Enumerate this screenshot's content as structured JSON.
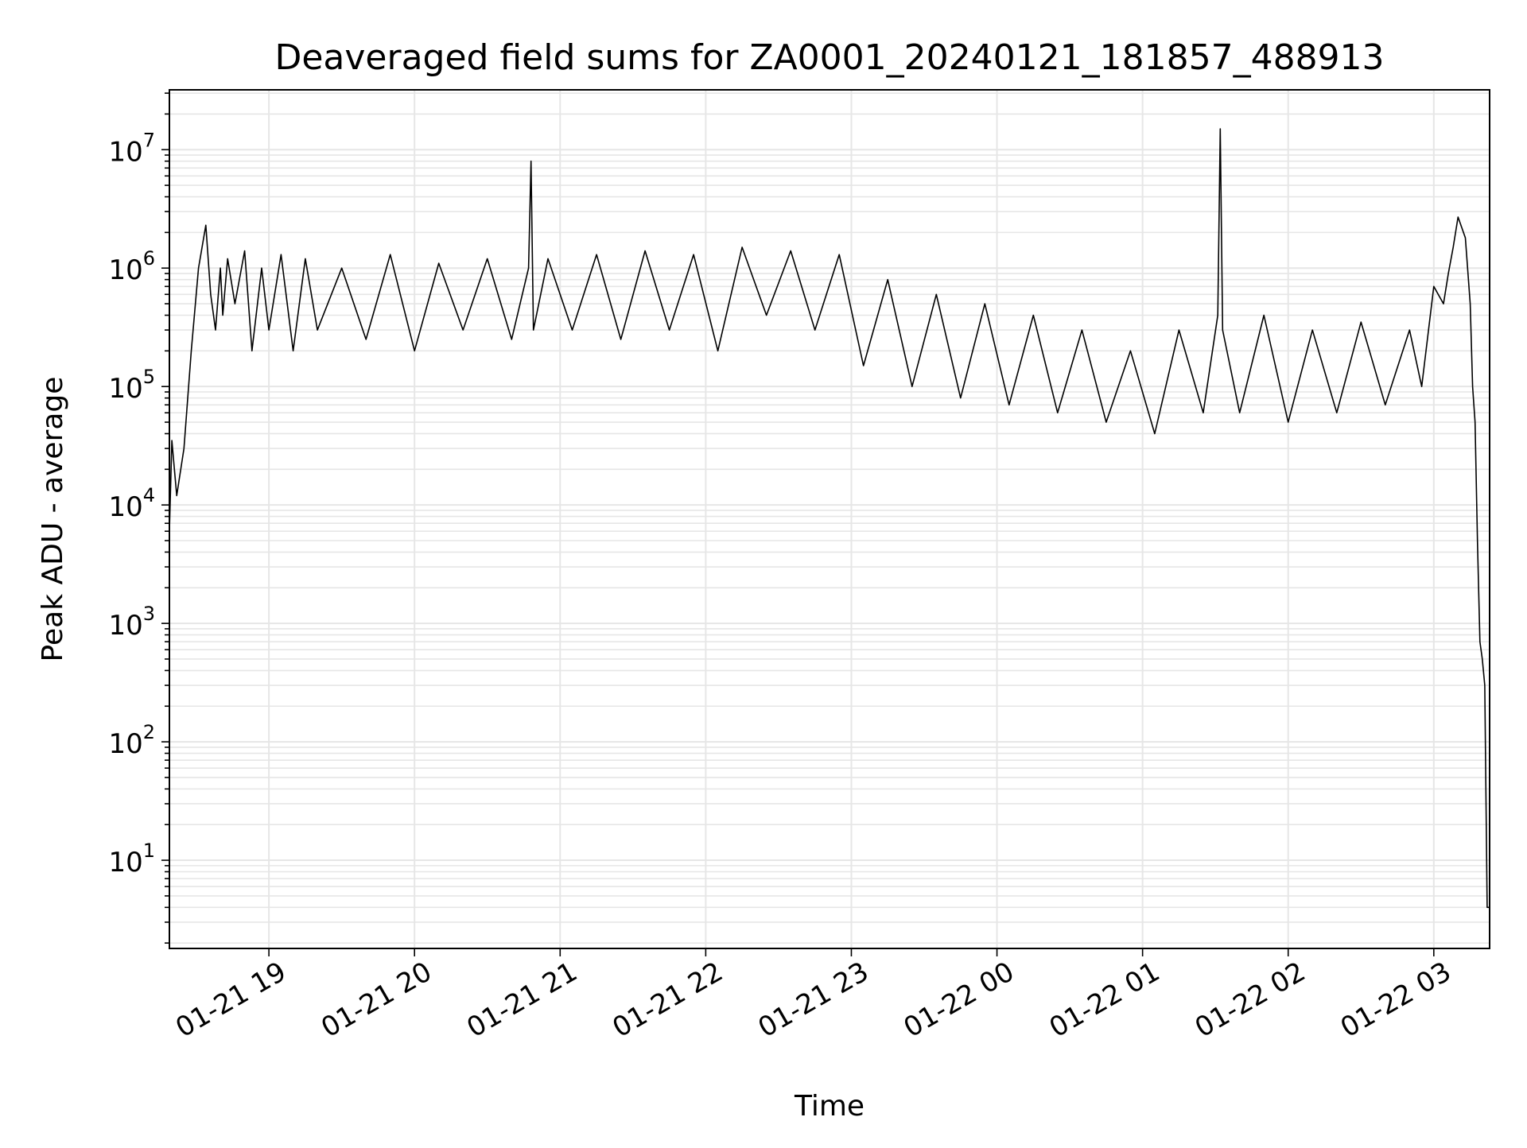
{
  "chart_data": {
    "type": "line",
    "title": "Deaveraged field sums for ZA0001_20240121_181857_488913",
    "xlabel": "Time",
    "ylabel": "Peak ADU - average",
    "y_scale": "log",
    "ylim": [
      1.8,
      32000000
    ],
    "xlim": [
      "01-21 18:19",
      "01-22 03:23"
    ],
    "grid": true,
    "line_color": "#000000",
    "grid_color": "#e6e6e6",
    "x_ticks": [
      "01-21 19",
      "01-21 20",
      "01-21 21",
      "01-21 22",
      "01-21 23",
      "01-22 00",
      "01-22 01",
      "01-22 02",
      "01-22 03"
    ],
    "y_ticks": [
      {
        "base": "10",
        "exp": "1"
      },
      {
        "base": "10",
        "exp": "2"
      },
      {
        "base": "10",
        "exp": "3"
      },
      {
        "base": "10",
        "exp": "4"
      },
      {
        "base": "10",
        "exp": "5"
      },
      {
        "base": "10",
        "exp": "6"
      },
      {
        "base": "10",
        "exp": "7"
      }
    ],
    "series": [
      {
        "x": [
          "01-21 18:19",
          "01-21 18:20",
          "01-21 18:22",
          "01-21 18:25",
          "01-21 18:28",
          "01-21 18:31",
          "01-21 18:34",
          "01-21 18:36",
          "01-21 18:38",
          "01-21 18:40",
          "01-21 18:41",
          "01-21 18:43",
          "01-21 18:46",
          "01-21 18:50",
          "01-21 18:53",
          "01-21 18:57",
          "01-21 19:00",
          "01-21 19:05",
          "01-21 19:10",
          "01-21 19:15",
          "01-21 19:20",
          "01-21 19:30",
          "01-21 19:40",
          "01-21 19:50",
          "01-21 20:00",
          "01-21 20:10",
          "01-21 20:20",
          "01-21 20:30",
          "01-21 20:40",
          "01-21 20:47",
          "01-21 20:48",
          "01-21 20:49",
          "01-21 20:55",
          "01-21 21:05",
          "01-21 21:15",
          "01-21 21:25",
          "01-21 21:35",
          "01-21 21:45",
          "01-21 21:55",
          "01-21 22:05",
          "01-21 22:15",
          "01-21 22:25",
          "01-21 22:35",
          "01-21 22:45",
          "01-21 22:55",
          "01-21 23:05",
          "01-21 23:15",
          "01-21 23:25",
          "01-21 23:35",
          "01-21 23:45",
          "01-21 23:55",
          "01-22 00:05",
          "01-22 00:15",
          "01-22 00:25",
          "01-22 00:35",
          "01-22 00:45",
          "01-22 00:55",
          "01-22 01:05",
          "01-22 01:15",
          "01-22 01:25",
          "01-22 01:31",
          "01-22 01:32",
          "01-22 01:33",
          "01-22 01:40",
          "01-22 01:50",
          "01-22 02:00",
          "01-22 02:10",
          "01-22 02:20",
          "01-22 02:30",
          "01-22 02:40",
          "01-22 02:50",
          "01-22 02:55",
          "01-22 03:00",
          "01-22 03:04",
          "01-22 03:06",
          "01-22 03:08",
          "01-22 03:10",
          "01-22 03:13",
          "01-22 03:15",
          "01-22 03:16",
          "01-22 03:17",
          "01-22 03:18",
          "01-22 03:19",
          "01-22 03:20",
          "01-22 03:21",
          "01-22 03:22",
          "01-22 03:23"
        ],
        "y": [
          6000,
          35000,
          12000,
          30000,
          200000,
          1000000,
          2300000,
          600000,
          300000,
          1000000,
          400000,
          1200000,
          500000,
          1400000,
          200000,
          1000000,
          300000,
          1300000,
          200000,
          1200000,
          300000,
          1000000,
          250000,
          1300000,
          200000,
          1100000,
          300000,
          1200000,
          250000,
          1000000,
          8000000,
          300000,
          1200000,
          300000,
          1300000,
          250000,
          1400000,
          300000,
          1300000,
          200000,
          1500000,
          400000,
          1400000,
          300000,
          1300000,
          150000,
          800000,
          100000,
          600000,
          80000,
          500000,
          70000,
          400000,
          60000,
          300000,
          50000,
          200000,
          40000,
          300000,
          60000,
          400000,
          15000000,
          300000,
          60000,
          400000,
          50000,
          300000,
          60000,
          350000,
          70000,
          300000,
          100000,
          700000,
          500000,
          900000,
          1500000,
          2700000,
          1800000,
          500000,
          100000,
          50000,
          5000,
          700,
          500,
          300,
          4,
          4
        ]
      }
    ]
  }
}
